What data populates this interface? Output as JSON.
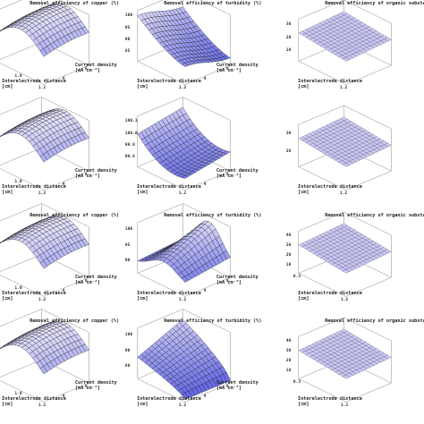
{
  "chart_data": [
    {
      "type": "surface",
      "panel": "copper-1",
      "title": "Removal efficiency of copper (%)",
      "xlabel": "Interelectrode distance [cm]",
      "ylabel": "Current density [mA cm⁻²]",
      "xticks": [
        "0.3",
        "1.0",
        "1.2"
      ],
      "yticks": [
        "4",
        "8"
      ],
      "zticks": []
    },
    {
      "type": "surface",
      "panel": "turbidity-1",
      "title": "Removal efficiency of turbidity (%)",
      "xlabel": "Interelectrode distance [cm]",
      "ylabel": "Current density [mA cm⁻²]",
      "xticks": [
        "1.2"
      ],
      "yticks": [
        "4",
        "8"
      ],
      "zticks": [
        "100",
        "95",
        "90",
        "85"
      ]
    },
    {
      "type": "surface",
      "panel": "organic-1",
      "title": "Removal efficiency of organic substance",
      "xlabel": "Interelectrode distance [cm]",
      "ylabel": "",
      "xticks": [
        "1.2"
      ],
      "yticks": [],
      "zticks": [
        "30",
        "20",
        "10"
      ]
    },
    {
      "type": "surface",
      "panel": "copper-2",
      "title": "",
      "xlabel": "Interelectrode distance [cm]",
      "ylabel": "Current density [mA cm⁻²]",
      "xticks": [
        "0.3",
        "1.0",
        "1.2"
      ],
      "yticks": [
        "4",
        "8"
      ],
      "zticks": []
    },
    {
      "type": "surface",
      "panel": "turbidity-2",
      "title": "",
      "xlabel": "Interelectrode distance [cm]",
      "ylabel": "Current density [mA cm⁻²]",
      "xticks": [
        "1.2"
      ],
      "yticks": [
        "4",
        "8"
      ],
      "zticks": [
        "100.1",
        "100.0",
        "99.9",
        "99.8"
      ]
    },
    {
      "type": "surface",
      "panel": "organic-2",
      "title": "",
      "xlabel": "Interelectrode distance [cm]",
      "ylabel": "",
      "xticks": [
        "1.2"
      ],
      "yticks": [],
      "zticks": [
        "30",
        "20"
      ]
    },
    {
      "type": "surface",
      "panel": "copper-3",
      "title": "Removal efficiency of copper (%)",
      "xlabel": "Interelectrode distance [cm]",
      "ylabel": "Current density [mA cm⁻²]",
      "xticks": [
        "0.3",
        "1.0",
        "1.2"
      ],
      "yticks": [
        "4",
        "8"
      ],
      "zticks": []
    },
    {
      "type": "surface",
      "panel": "turbidity-3",
      "title": "Removal efficiency of turbidity (%)",
      "xlabel": "Interelectrode distance [cm]",
      "ylabel": "Current density [mA cm⁻²]",
      "xticks": [
        "1.2"
      ],
      "yticks": [
        "4",
        "8"
      ],
      "zticks": [
        "100",
        "95",
        "90"
      ]
    },
    {
      "type": "surface",
      "panel": "organic-3",
      "title": "Removal efficiency of organic substanc",
      "xlabel": "Interelectrode distance [cm]",
      "ylabel": "",
      "xticks": [
        "0.3",
        "1.2"
      ],
      "yticks": [],
      "zticks": [
        "40",
        "30",
        "20",
        "10"
      ]
    },
    {
      "type": "surface",
      "panel": "copper-4",
      "title": "Removal efficiency of copper (%)",
      "xlabel": "Interelectrode distance [cm]",
      "ylabel": "Current density [mA cm⁻²]",
      "xticks": [
        "0.3",
        "1.0",
        "1.2"
      ],
      "yticks": [
        "4",
        "8"
      ],
      "zticks": []
    },
    {
      "type": "surface",
      "panel": "turbidity-4",
      "title": "Removal efficiency of turbidity (%)",
      "xlabel": "Interelectrode distance [cm]",
      "ylabel": "Current density [mA cm⁻²]",
      "xticks": [
        "1.2"
      ],
      "yticks": [
        "4",
        "8"
      ],
      "zticks": [
        "100",
        "90",
        "80"
      ]
    },
    {
      "type": "surface",
      "panel": "organic-4",
      "title": "Removal efficiency of organic substanc",
      "xlabel": "Interelectrode distance [cm]",
      "ylabel": "",
      "xticks": [
        "0.3",
        "1.2"
      ],
      "yticks": [],
      "zticks": [
        "40",
        "30",
        "20",
        "10"
      ]
    }
  ],
  "colors": {
    "surface_high": "#e9e7fb",
    "surface_low": "#5a5ee6",
    "mesh": "#141414",
    "box": "#8a8a8a"
  }
}
